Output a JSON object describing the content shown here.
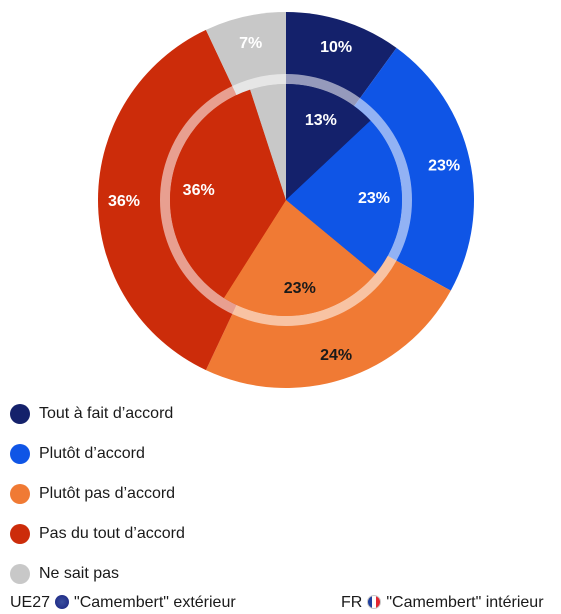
{
  "chart_data": {
    "type": "pie",
    "categories": [
      "Tout à fait d’accord",
      "Plutôt d’accord",
      "Plutôt pas d’accord",
      "Pas du tout d’accord",
      "Ne sait pas"
    ],
    "colors": [
      "#14216b",
      "#0f55e6",
      "#f07a34",
      "#cc2c0a",
      "#c8c8c8"
    ],
    "series": [
      {
        "name": "UE27",
        "ring": "outer",
        "values": [
          10,
          23,
          24,
          36,
          7
        ]
      },
      {
        "name": "FR",
        "ring": "inner",
        "values": [
          13,
          23,
          23,
          36,
          5
        ]
      }
    ],
    "value_labels": {
      "outer": [
        "10%",
        "23%",
        "24%",
        "36%",
        "7%"
      ],
      "inner": [
        "13%",
        "23%",
        "23%",
        "36%",
        ""
      ]
    },
    "legend_position": "bottom-left"
  },
  "legend": {
    "items": [
      "Tout à fait d’accord",
      "Plutôt d’accord",
      "Plutôt pas d’accord",
      "Pas du tout d’accord",
      "Ne sait pas"
    ]
  },
  "footer": {
    "left_label": "UE27",
    "left_text": "\"Camembert\" extérieur",
    "right_label": "FR",
    "right_text": "\"Camembert\" intérieur",
    "left_flag_icon": "eu-flag-icon",
    "right_flag_icon": "fr-flag-icon"
  }
}
